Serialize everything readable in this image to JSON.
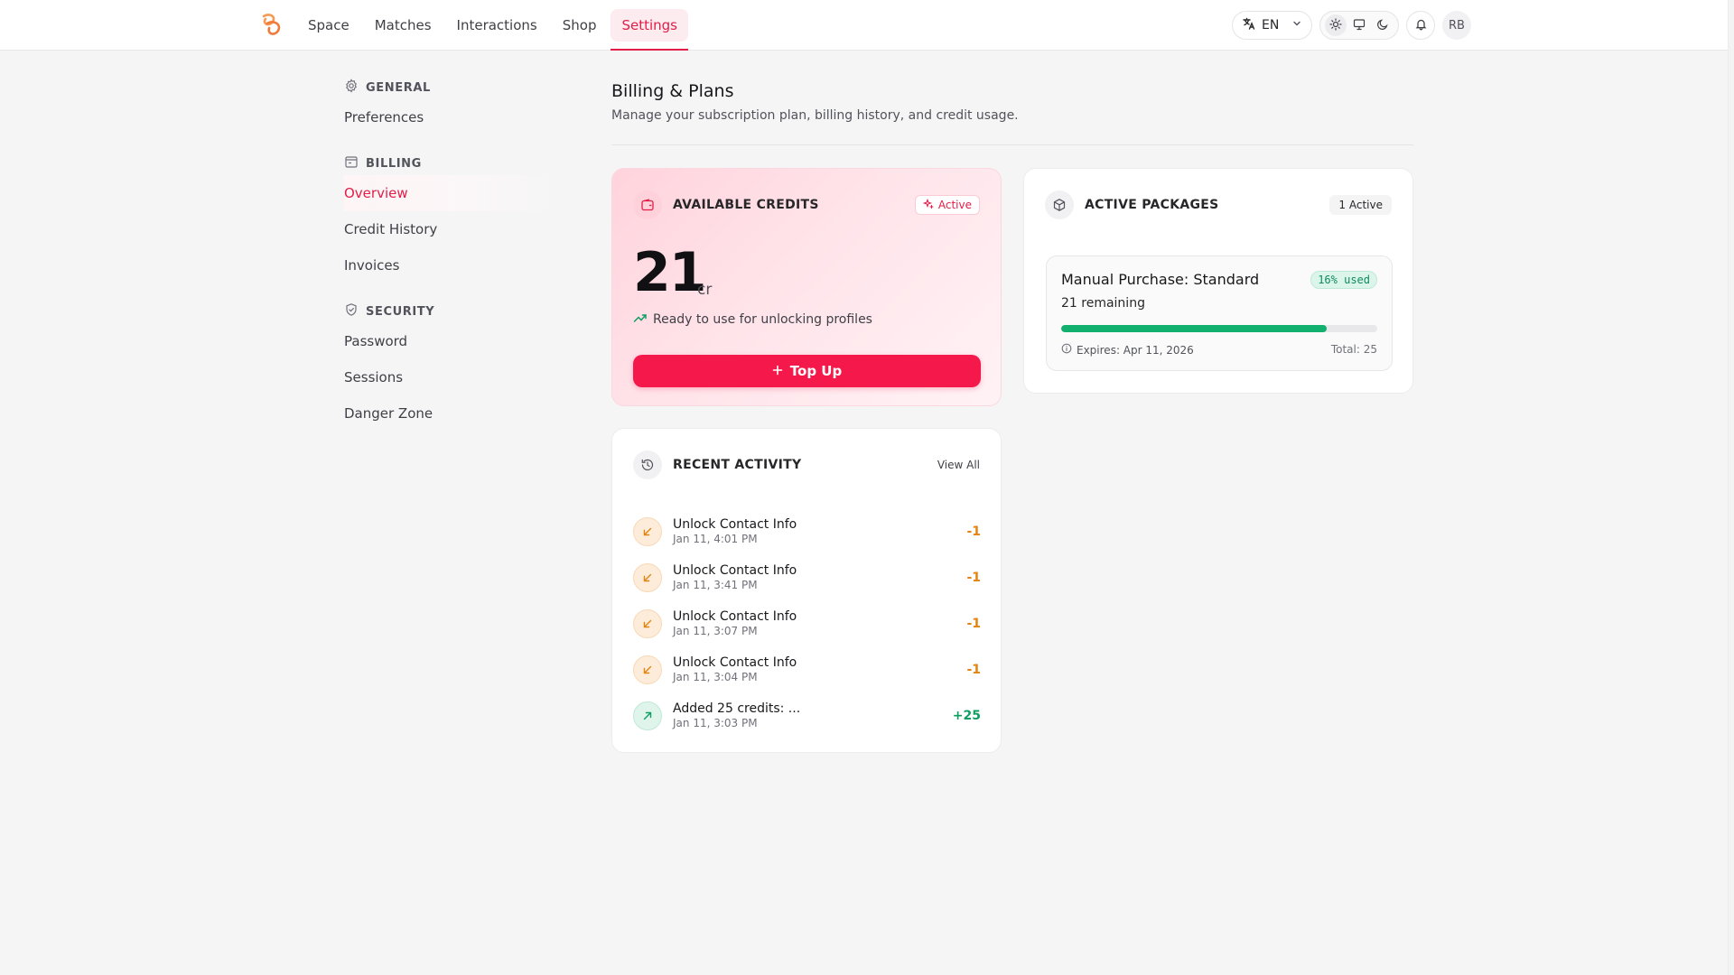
{
  "nav": {
    "items": [
      {
        "label": "Space",
        "active": false
      },
      {
        "label": "Matches",
        "active": false
      },
      {
        "label": "Interactions",
        "active": false
      },
      {
        "label": "Shop",
        "active": false
      },
      {
        "label": "Settings",
        "active": true
      }
    ],
    "language": "EN",
    "avatar_initials": "RB"
  },
  "sidebar": {
    "groups": [
      {
        "title": "GENERAL",
        "icon": "gear-icon",
        "items": [
          {
            "label": "Preferences",
            "active": false
          }
        ]
      },
      {
        "title": "BILLING",
        "icon": "wallet-icon",
        "items": [
          {
            "label": "Overview",
            "active": true
          },
          {
            "label": "Credit History",
            "active": false
          },
          {
            "label": "Invoices",
            "active": false
          }
        ]
      },
      {
        "title": "SECURITY",
        "icon": "shield-icon",
        "items": [
          {
            "label": "Password",
            "active": false
          },
          {
            "label": "Sessions",
            "active": false
          },
          {
            "label": "Danger Zone",
            "active": false
          }
        ]
      }
    ]
  },
  "page": {
    "title": "Billing & Plans",
    "subtitle": "Manage your subscription plan, billing history, and credit usage."
  },
  "credits": {
    "title": "AVAILABLE CREDITS",
    "status": "Active",
    "amount": "21",
    "unit": "cr",
    "note": "Ready to use for unlocking profiles",
    "topup_label": "Top Up"
  },
  "packages": {
    "title": "ACTIVE PACKAGES",
    "count_label": "1 Active",
    "items": [
      {
        "name": "Manual Purchase: Standard",
        "used_label": "16% used",
        "remaining": "21 remaining",
        "remaining_fraction": 0.84,
        "expires": "Expires: Apr 11, 2026",
        "total": "Total: 25"
      }
    ]
  },
  "activity": {
    "title": "RECENT ACTIVITY",
    "view_all": "View All",
    "rows": [
      {
        "title": "Unlock Contact Info",
        "time": "Jan 11, 4:01 PM",
        "amount": "-1",
        "direction": "out"
      },
      {
        "title": "Unlock Contact Info",
        "time": "Jan 11, 3:41 PM",
        "amount": "-1",
        "direction": "out"
      },
      {
        "title": "Unlock Contact Info",
        "time": "Jan 11, 3:07 PM",
        "amount": "-1",
        "direction": "out"
      },
      {
        "title": "Unlock Contact Info",
        "time": "Jan 11, 3:04 PM",
        "amount": "-1",
        "direction": "out"
      },
      {
        "title": "Added 25 credits: ...",
        "time": "Jan 11, 3:03 PM",
        "amount": "+25",
        "direction": "in"
      }
    ]
  },
  "colors": {
    "accent": "#e11d48",
    "button": "#f5184a",
    "progress": "#12b06e",
    "debit": "#e2840f",
    "credit": "#0f9d62"
  }
}
